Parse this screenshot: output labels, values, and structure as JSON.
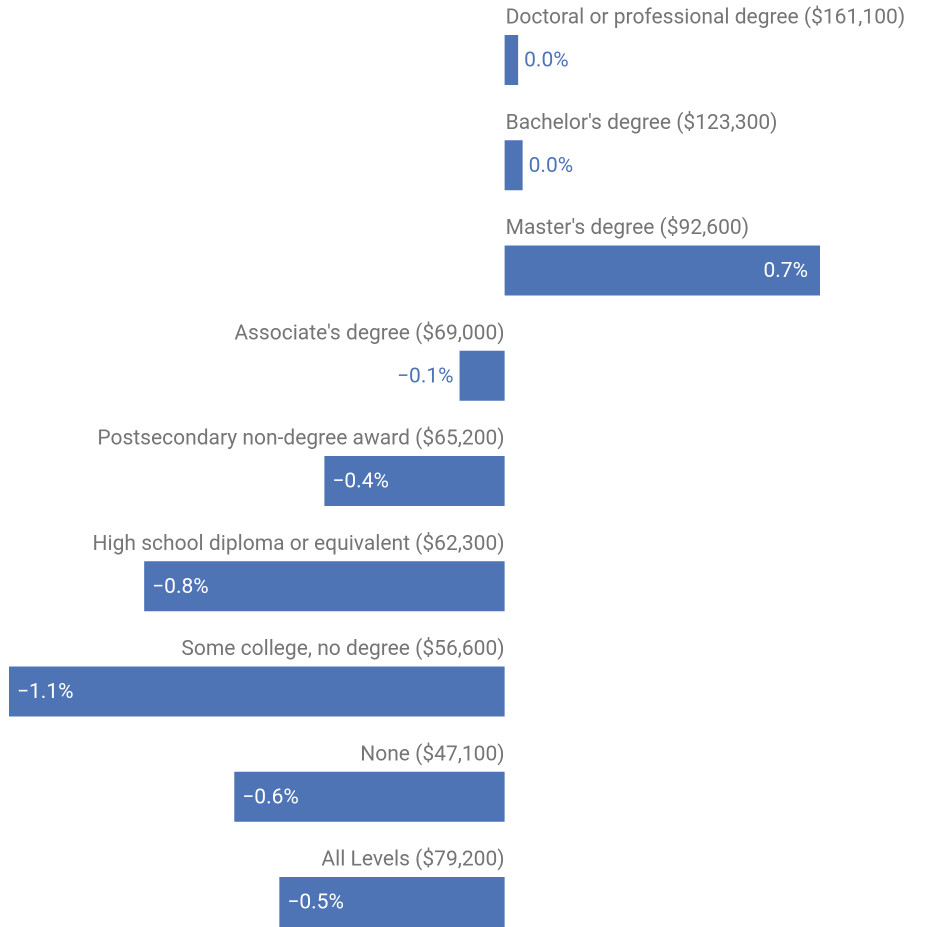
{
  "chart_data": {
    "type": "bar",
    "orientation": "horizontal",
    "color": "#4e74b5",
    "categories": [
      "Doctoral or professional degree ($161,100)",
      "Bachelor's degree ($123,300)",
      "Master's degree ($92,600)",
      "Associate's degree ($69,000)",
      "Postsecondary non-degree award ($65,200)",
      "High school diploma or equivalent ($62,300)",
      "Some college, no degree ($56,600)",
      "None ($47,100)",
      "All Levels ($79,200)"
    ],
    "values": [
      0.03,
      0.04,
      0.7,
      -0.1,
      -0.4,
      -0.8,
      -1.1,
      -0.6,
      -0.5
    ],
    "value_labels": [
      "0.0%",
      "0.0%",
      "0.7%",
      "−0.1%",
      "−0.4%",
      "−0.8%",
      "−1.1%",
      "−0.6%",
      "−0.5%"
    ]
  }
}
